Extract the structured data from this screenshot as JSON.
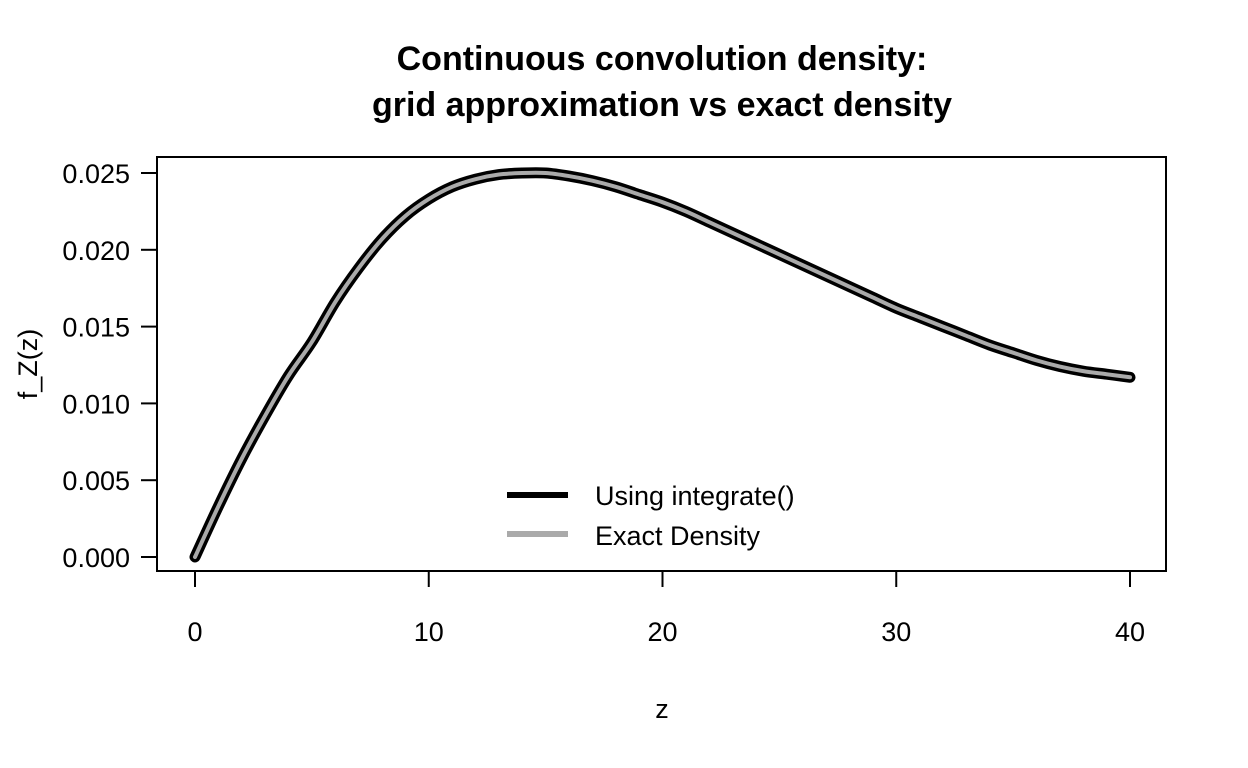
{
  "chart_data": {
    "type": "line",
    "title": "Continuous convolution density:",
    "subtitle": "grid approximation vs exact density",
    "xlabel": "z",
    "ylabel": "f_Z(z)",
    "xlim": [
      0,
      40
    ],
    "ylim": [
      0,
      0.025
    ],
    "x_ticks": [
      "0",
      "10",
      "20",
      "30",
      "40"
    ],
    "y_ticks": [
      "0.000",
      "0.005",
      "0.010",
      "0.015",
      "0.020",
      "0.025"
    ],
    "grid": false,
    "legend_position": "bottom-center",
    "series": [
      {
        "name": "Using integrate()",
        "color": "#000000",
        "x": [
          0,
          1,
          2,
          3,
          4,
          5,
          6,
          7,
          8,
          9,
          10,
          11,
          12,
          13,
          14,
          15,
          16,
          17,
          18,
          19,
          20,
          21,
          22,
          23,
          24,
          25,
          26,
          27,
          28,
          29,
          30,
          31,
          32,
          33,
          34,
          35,
          36,
          37,
          38,
          39,
          40
        ],
        "y": [
          0.0,
          0.0033,
          0.0064,
          0.0092,
          0.0118,
          0.014,
          0.0166,
          0.0188,
          0.0207,
          0.0222,
          0.0233,
          0.0241,
          0.0246,
          0.0249,
          0.025,
          0.025,
          0.0248,
          0.0245,
          0.0241,
          0.0236,
          0.0231,
          0.0225,
          0.0218,
          0.0211,
          0.0204,
          0.0197,
          0.019,
          0.0183,
          0.0176,
          0.0169,
          0.0162,
          0.0156,
          0.015,
          0.0144,
          0.0138,
          0.0133,
          0.0128,
          0.0124,
          0.0121,
          0.0119,
          0.0117
        ]
      },
      {
        "name": "Exact Density",
        "color": "#aaaaaa",
        "x": [
          0,
          1,
          2,
          3,
          4,
          5,
          6,
          7,
          8,
          9,
          10,
          11,
          12,
          13,
          14,
          15,
          16,
          17,
          18,
          19,
          20,
          21,
          22,
          23,
          24,
          25,
          26,
          27,
          28,
          29,
          30,
          31,
          32,
          33,
          34,
          35,
          36,
          37,
          38,
          39,
          40
        ],
        "y": [
          0.0,
          0.0033,
          0.0064,
          0.0092,
          0.0118,
          0.014,
          0.0166,
          0.0188,
          0.0207,
          0.0222,
          0.0233,
          0.0241,
          0.0246,
          0.0249,
          0.025,
          0.025,
          0.0248,
          0.0245,
          0.0241,
          0.0236,
          0.0231,
          0.0225,
          0.0218,
          0.0211,
          0.0204,
          0.0197,
          0.019,
          0.0183,
          0.0176,
          0.0169,
          0.0162,
          0.0156,
          0.015,
          0.0144,
          0.0138,
          0.0133,
          0.0128,
          0.0124,
          0.0121,
          0.0119,
          0.0117
        ]
      }
    ]
  }
}
